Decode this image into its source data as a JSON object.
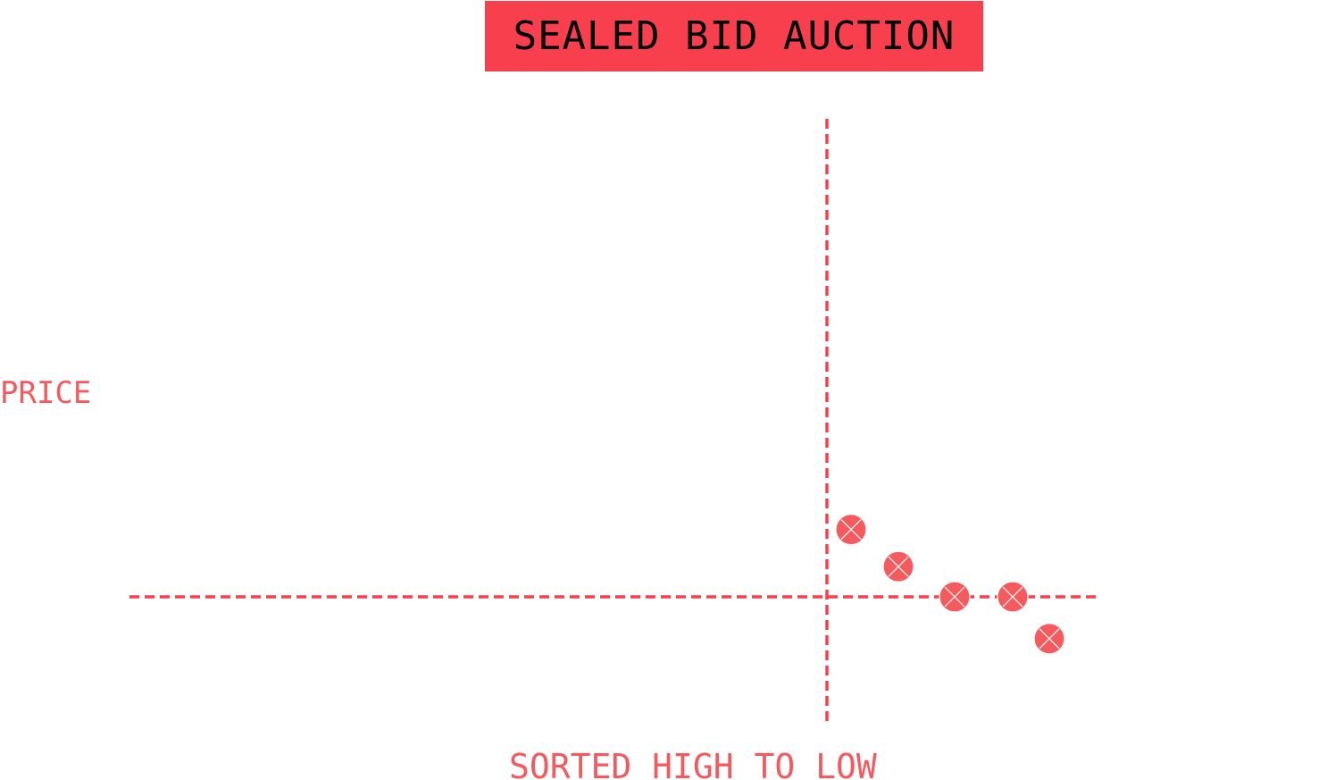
{
  "chart_data": {
    "type": "scatter",
    "title": "SEALED BID AUCTION",
    "xlabel": "SORTED HIGH TO LOW",
    "ylabel": "PRICE",
    "points": [
      {
        "x": 1,
        "y": 1.45
      },
      {
        "x": 2,
        "y": 0.65
      },
      {
        "x": 3,
        "y": 0.0
      },
      {
        "x": 4,
        "y": 0.0
      },
      {
        "x": 5,
        "y": -0.9
      }
    ],
    "reference_lines": {
      "horizontal_y": 0,
      "vertical_x": 0.5
    },
    "grid": false,
    "legend": "none",
    "colors": {
      "accent": "#f83f4d",
      "label": "#f35a5f",
      "marker": "#f55a5e"
    }
  }
}
